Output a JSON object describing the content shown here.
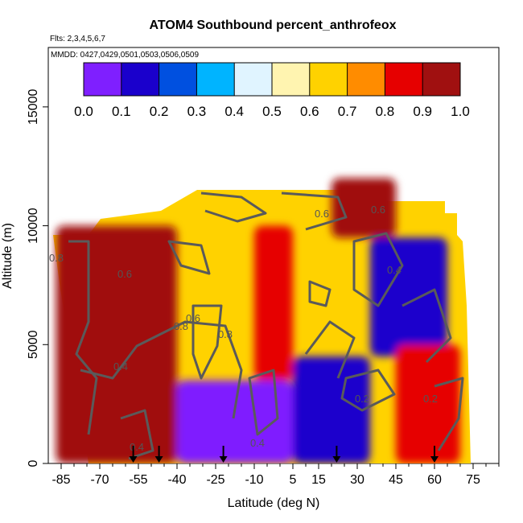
{
  "chart_data": {
    "type": "heatmap",
    "title": "ATOM4 Southbound percent_anthrofeox",
    "subtitle_flights": "Flts: 2,3,4,5,6,7",
    "subtitle_dates": "MMDD: 0427,0429,0501,0503,0506,0509",
    "xlabel": "Latitude (deg N)",
    "ylabel": "Altitude (m)",
    "xlim": [
      -90,
      85
    ],
    "ylim": [
      0,
      17500
    ],
    "x_ticks": [
      -85,
      -70,
      -55,
      -40,
      -25,
      -10,
      5,
      15,
      30,
      45,
      60,
      75
    ],
    "y_ticks": [
      0,
      5000,
      10000,
      15000
    ],
    "colorbar": {
      "ticks": [
        "0.0",
        "0.1",
        "0.2",
        "0.3",
        "0.4",
        "0.5",
        "0.6",
        "0.7",
        "0.8",
        "0.9",
        "1.0"
      ],
      "colors": [
        "#7f1fff",
        "#1a00cc",
        "#0050e0",
        "#00b4ff",
        "#e0f4ff",
        "#fff4b0",
        "#ffd200",
        "#ff8c00",
        "#e60000",
        "#a01010"
      ],
      "placement": "top, inside plot"
    },
    "contour_labels": [
      "0.4",
      "0.6",
      "0.6",
      "0.8",
      "0.8",
      "0.4",
      "0.2",
      "0.6",
      "0.6",
      "0.4",
      "0.2",
      "0.8",
      "0.4"
    ],
    "profile_latitudes": [
      -57,
      -47,
      -22,
      22,
      60
    ],
    "regions": [
      {
        "lat": [
          -87,
          -40
        ],
        "alt": [
          0,
          10000
        ],
        "value": 0.95
      },
      {
        "lat": [
          -40,
          5
        ],
        "alt": [
          0,
          3500
        ],
        "value": 0.05
      },
      {
        "lat": [
          5,
          35
        ],
        "alt": [
          0,
          4500
        ],
        "value": 0.1
      },
      {
        "lat": [
          35,
          65
        ],
        "alt": [
          4500,
          9500
        ],
        "value": 0.1
      },
      {
        "lat": [
          -10,
          5
        ],
        "alt": [
          3500,
          10000
        ],
        "value": 0.85
      },
      {
        "lat": [
          20,
          45
        ],
        "alt": [
          9500,
          12000
        ],
        "value": 0.9
      },
      {
        "lat": [
          45,
          70
        ],
        "alt": [
          0,
          5000
        ],
        "value": 0.85
      }
    ]
  }
}
